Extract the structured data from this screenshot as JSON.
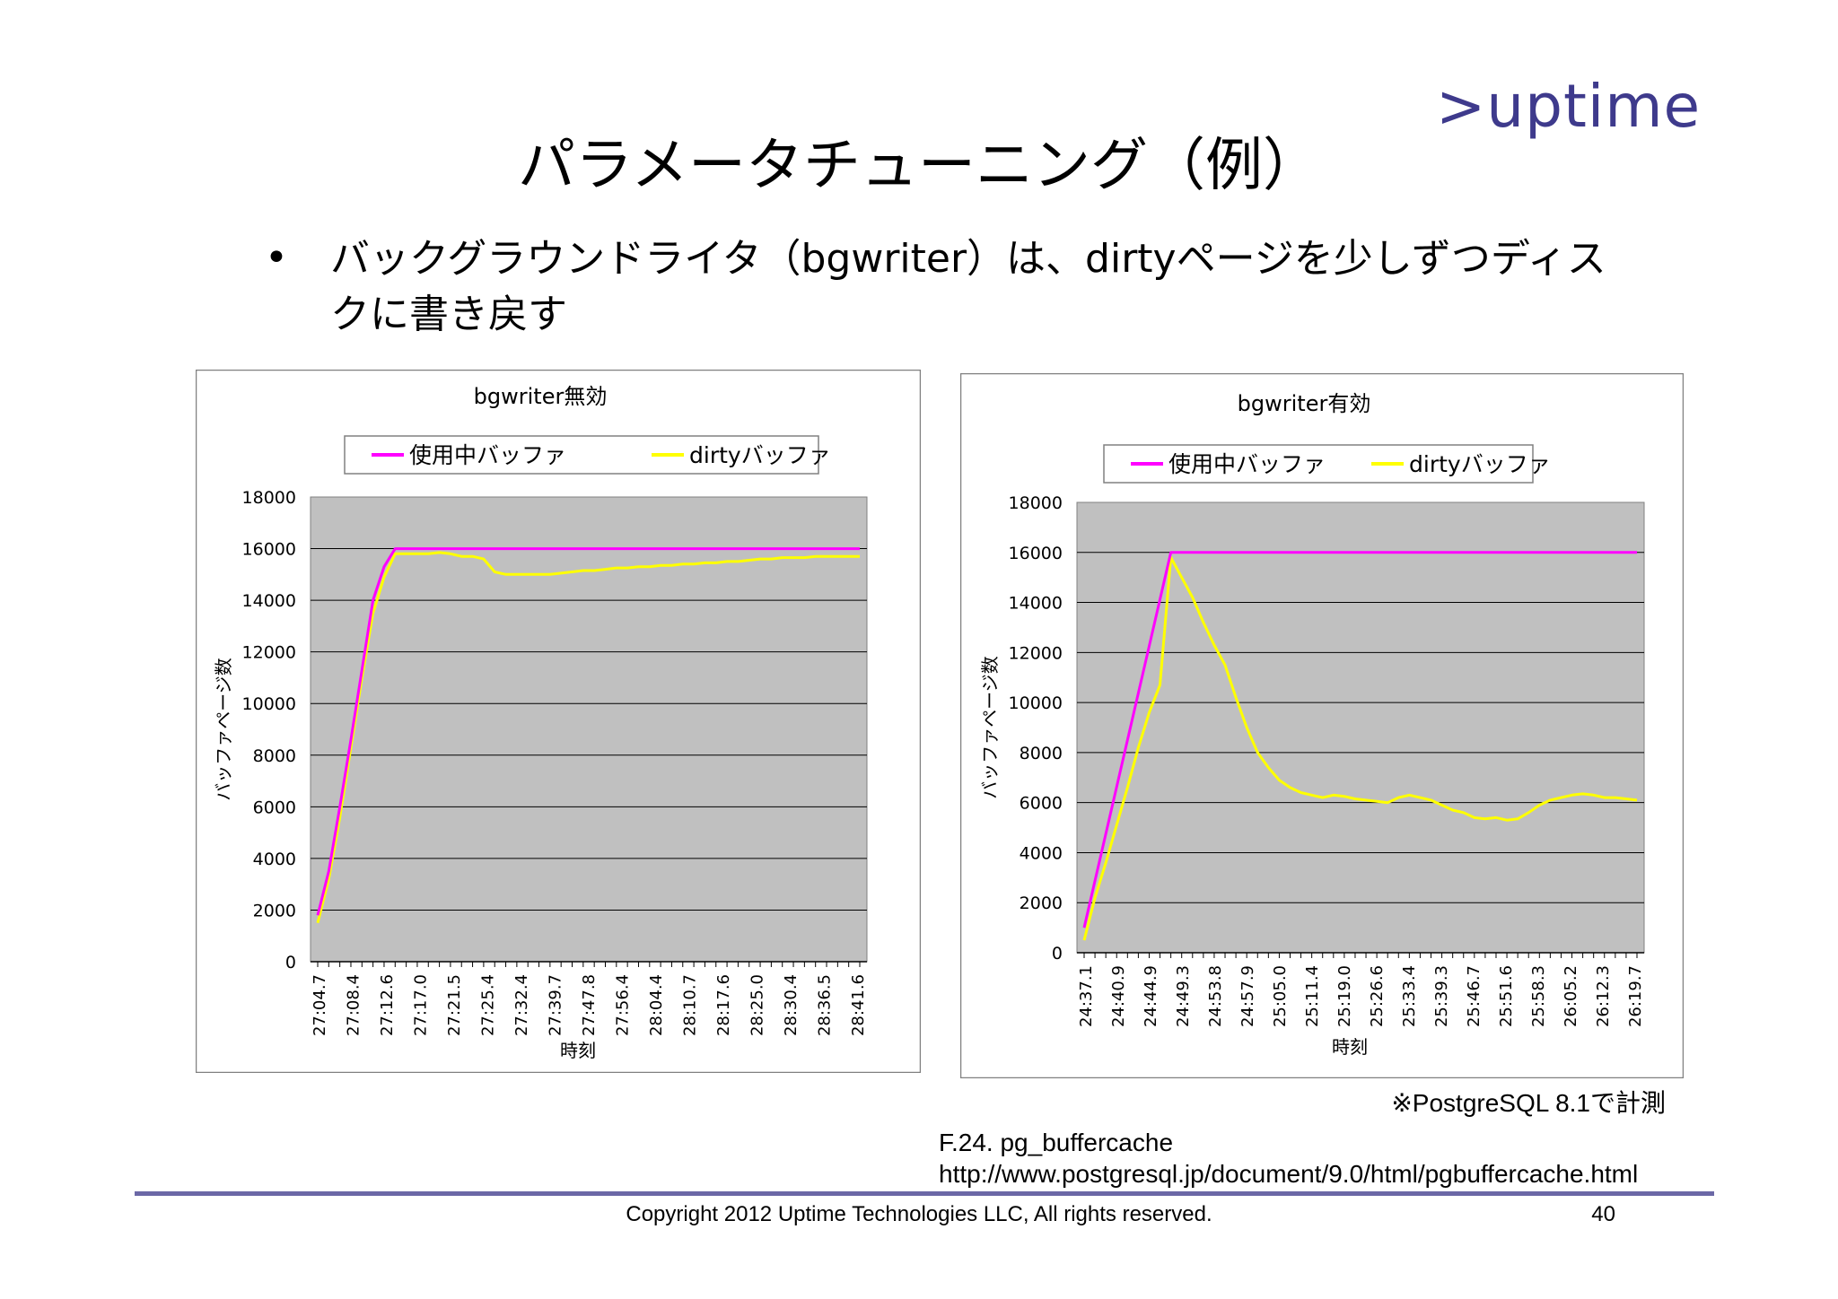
{
  "logo": {
    "text": ">uptime",
    "color": "#3e3a8c"
  },
  "title": "パラメータチューニング（例）",
  "bullet": {
    "symbol": "•",
    "text": "バックグラウンドライタ（bgwriter）は、dirtyページを少しずつディスクに書き戻す"
  },
  "chart_data": [
    {
      "type": "line",
      "title": "bgwriter無効",
      "xlabel": "時刻",
      "ylabel": "バッファページ数",
      "ylim": [
        0,
        18000
      ],
      "yticks": [
        0,
        2000,
        4000,
        6000,
        8000,
        10000,
        12000,
        14000,
        16000,
        18000
      ],
      "xtick_labels": [
        "27:04.7",
        "27:08.4",
        "27:12.6",
        "27:17.0",
        "27:21.5",
        "27:25.4",
        "27:32.4",
        "27:39.7",
        "27:47.8",
        "27:56.4",
        "28:04.4",
        "28:10.7",
        "28:17.6",
        "28:25.0",
        "28:30.4",
        "28:36.5",
        "28:41.6"
      ],
      "n_points": 50,
      "legend_position": "top",
      "grid": true,
      "plot_bg": "#c0c0c0",
      "series": [
        {
          "name": "使用中バッファ",
          "color": "#ff00ff",
          "points": [
            [
              0,
              1800
            ],
            [
              1,
              3500
            ],
            [
              2,
              6000
            ],
            [
              3,
              8600
            ],
            [
              4,
              11300
            ],
            [
              5,
              14000
            ],
            [
              6,
              15300
            ],
            [
              7,
              16000
            ],
            [
              49,
              16000
            ]
          ]
        },
        {
          "name": "dirtyバッファ",
          "color": "#ffff00",
          "points": [
            [
              0,
              1500
            ],
            [
              1,
              3200
            ],
            [
              2,
              5600
            ],
            [
              3,
              8300
            ],
            [
              4,
              11000
            ],
            [
              5,
              13500
            ],
            [
              6,
              14900
            ],
            [
              7,
              15800
            ],
            [
              8,
              15800
            ],
            [
              9,
              15800
            ],
            [
              10,
              15800
            ],
            [
              11,
              15850
            ],
            [
              12,
              15800
            ],
            [
              13,
              15700
            ],
            [
              14,
              15700
            ],
            [
              15,
              15600
            ],
            [
              16,
              15100
            ],
            [
              17,
              15000
            ],
            [
              18,
              15000
            ],
            [
              19,
              15000
            ],
            [
              20,
              15000
            ],
            [
              21,
              15000
            ],
            [
              22,
              15050
            ],
            [
              23,
              15100
            ],
            [
              24,
              15150
            ],
            [
              25,
              15150
            ],
            [
              26,
              15200
            ],
            [
              27,
              15250
            ],
            [
              28,
              15250
            ],
            [
              29,
              15300
            ],
            [
              30,
              15300
            ],
            [
              31,
              15350
            ],
            [
              32,
              15350
            ],
            [
              33,
              15400
            ],
            [
              34,
              15400
            ],
            [
              35,
              15450
            ],
            [
              36,
              15450
            ],
            [
              37,
              15500
            ],
            [
              38,
              15500
            ],
            [
              39,
              15550
            ],
            [
              40,
              15600
            ],
            [
              41,
              15600
            ],
            [
              42,
              15650
            ],
            [
              43,
              15650
            ],
            [
              44,
              15650
            ],
            [
              45,
              15700
            ],
            [
              46,
              15700
            ],
            [
              47,
              15700
            ],
            [
              48,
              15700
            ],
            [
              49,
              15700
            ]
          ]
        }
      ]
    },
    {
      "type": "line",
      "title": "bgwriter有効",
      "xlabel": "時刻",
      "ylabel": "バッファページ数",
      "ylim": [
        0,
        18000
      ],
      "yticks": [
        0,
        2000,
        4000,
        6000,
        8000,
        10000,
        12000,
        14000,
        16000,
        18000
      ],
      "xtick_labels": [
        "24:37.1",
        "24:40.9",
        "24:44.9",
        "24:49.3",
        "24:53.8",
        "24:57.9",
        "25:05.0",
        "25:11.4",
        "25:19.0",
        "25:26.6",
        "25:33.4",
        "25:39.3",
        "25:46.7",
        "25:51.6",
        "25:58.3",
        "26:05.2",
        "26:12.3",
        "26:19.7"
      ],
      "n_points": 52,
      "legend_position": "top",
      "grid": true,
      "plot_bg": "#c0c0c0",
      "series": [
        {
          "name": "使用中バッファ",
          "color": "#ff00ff",
          "points": [
            [
              0,
              1000
            ],
            [
              8,
              16000
            ],
            [
              51,
              16000
            ]
          ]
        },
        {
          "name": "dirtyバッファ",
          "color": "#ffff00",
          "points": [
            [
              0,
              500
            ],
            [
              1,
              2200
            ],
            [
              2,
              3600
            ],
            [
              3,
              5100
            ],
            [
              4,
              6600
            ],
            [
              5,
              8200
            ],
            [
              6,
              9600
            ],
            [
              7,
              10700
            ],
            [
              8,
              15800
            ],
            [
              9,
              15000
            ],
            [
              10,
              14200
            ],
            [
              11,
              13200
            ],
            [
              12,
              12300
            ],
            [
              13,
              11500
            ],
            [
              14,
              10200
            ],
            [
              15,
              9000
            ],
            [
              16,
              8000
            ],
            [
              17,
              7400
            ],
            [
              18,
              6900
            ],
            [
              19,
              6600
            ],
            [
              20,
              6400
            ],
            [
              21,
              6300
            ],
            [
              22,
              6200
            ],
            [
              23,
              6300
            ],
            [
              24,
              6250
            ],
            [
              25,
              6150
            ],
            [
              26,
              6100
            ],
            [
              27,
              6050
            ],
            [
              28,
              6000
            ],
            [
              29,
              6200
            ],
            [
              30,
              6300
            ],
            [
              31,
              6200
            ],
            [
              32,
              6100
            ],
            [
              33,
              5900
            ],
            [
              34,
              5700
            ],
            [
              35,
              5600
            ],
            [
              36,
              5400
            ],
            [
              37,
              5350
            ],
            [
              38,
              5400
            ],
            [
              39,
              5300
            ],
            [
              40,
              5350
            ],
            [
              41,
              5600
            ],
            [
              42,
              5900
            ],
            [
              43,
              6100
            ],
            [
              44,
              6200
            ],
            [
              45,
              6300
            ],
            [
              46,
              6350
            ],
            [
              47,
              6300
            ],
            [
              48,
              6200
            ],
            [
              49,
              6200
            ],
            [
              50,
              6150
            ],
            [
              51,
              6100
            ]
          ]
        }
      ]
    }
  ],
  "note": "※PostgreSQL 8.1で計測",
  "reference": {
    "name": "F.24. pg_buffercache",
    "url": "http://www.postgresql.jp/document/9.0/html/pgbuffercache.html"
  },
  "footer": {
    "copyright": "Copyright 2012 Uptime Technologies LLC, All rights reserved.",
    "page": "40"
  }
}
